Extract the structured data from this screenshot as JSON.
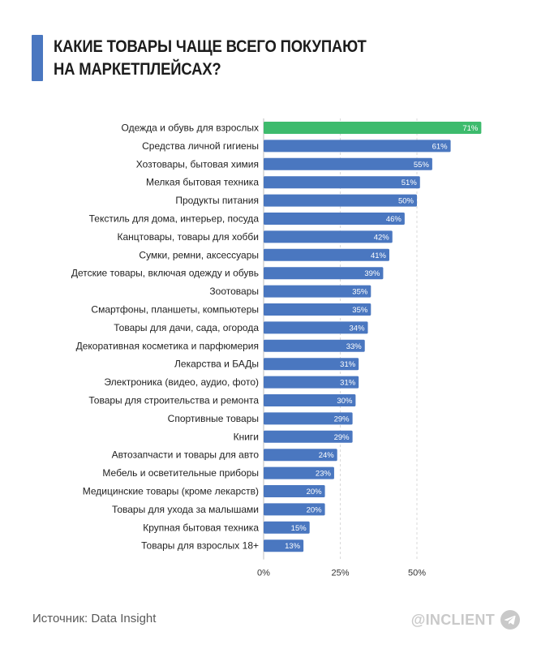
{
  "header": {
    "title_line1": "КАКИЕ ТОВАРЫ ЧАЩЕ ВСЕГО ПОКУПАЮТ",
    "title_line2": "НА МАРКЕТПЛЕЙСАХ?"
  },
  "chart_data": {
    "type": "bar",
    "orientation": "horizontal",
    "categories": [
      "Одежда и обувь для взрослых",
      "Средства личной гигиены",
      "Хозтовары, бытовая химия",
      "Мелкая бытовая техника",
      "Продукты питания",
      "Текстиль для дома, интерьер, посуда",
      "Канцтовары, товары для хобби",
      "Сумки, ремни, аксессуары",
      "Детские товары, включая одежду и обувь",
      "Зоотовары",
      "Смартфоны, планшеты, компьютеры",
      "Товары для дачи, сада, огорода",
      "Декоративная косметика и парфюмерия",
      "Лекарства и БАДы",
      "Электроника (видео, аудио, фото)",
      "Товары для строительства и ремонта",
      "Спортивные товары",
      "Книги",
      "Автозапчасти и товары для авто",
      "Мебель и осветительные приборы",
      "Медицинские товары (кроме лекарств)",
      "Товары для ухода за малышами",
      "Крупная бытовая техника",
      "Товары для взрослых 18+"
    ],
    "values": [
      71,
      61,
      55,
      51,
      50,
      46,
      42,
      41,
      39,
      35,
      35,
      34,
      33,
      31,
      31,
      30,
      29,
      29,
      24,
      23,
      20,
      20,
      15,
      13
    ],
    "value_labels": [
      "71%",
      "61%",
      "55%",
      "51%",
      "50%",
      "46%",
      "42%",
      "41%",
      "39%",
      "35%",
      "35%",
      "34%",
      "33%",
      "31%",
      "31%",
      "30%",
      "29%",
      "29%",
      "24%",
      "23%",
      "20%",
      "20%",
      "15%",
      "13%"
    ],
    "xticks": [
      0,
      25,
      50
    ],
    "xtick_labels": [
      "0%",
      "25%",
      "50%"
    ],
    "xlim": [
      0,
      75
    ],
    "grid": "vertical dashed",
    "colors": {
      "bar": "#4a77c0",
      "highlight": "#3dbb6d",
      "grid": "#d9d9d9",
      "label_text": "#222222",
      "value_text": "#ffffff"
    },
    "highlight_index": 0
  },
  "footer": {
    "source": "Источник: Data Insight",
    "brand": "@INCLIENT",
    "brand_icon": "telegram-icon"
  }
}
